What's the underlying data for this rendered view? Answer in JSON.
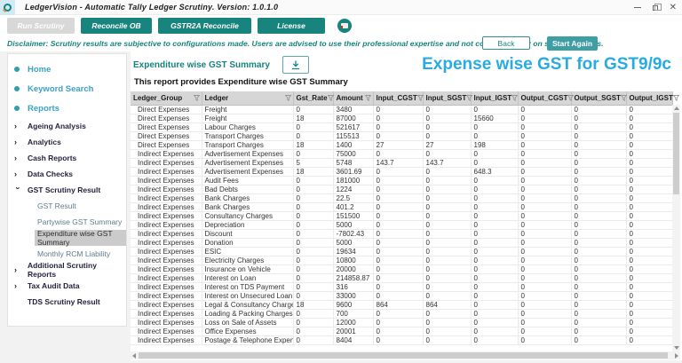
{
  "window": {
    "title": "LedgerVision - Automatic Tally Ledger Scrutiny. Version: 1.0.1.0"
  },
  "toolbar": {
    "run_scrutiny": "Run Scrutiny",
    "reconcile_ob": "Reconcile OB",
    "gstr2a_reconcile": "GSTR2A Reconcile",
    "license": "License"
  },
  "disclaimer": {
    "text": "Disclaimer: Scrutiny results are subjective to configurations made. Users are advised to use their professional expertise and not completely rely on scrutiny results.",
    "back": "Back",
    "start_again": "Start Again"
  },
  "sidebar": {
    "items": [
      {
        "label": "Home",
        "type": "root"
      },
      {
        "label": "Keyword Search",
        "type": "root"
      },
      {
        "label": "Reports",
        "type": "root"
      },
      {
        "label": "Ageing Analysis",
        "type": "group"
      },
      {
        "label": "Analytics",
        "type": "group"
      },
      {
        "label": "Cash Reports",
        "type": "group"
      },
      {
        "label": "Data Checks",
        "type": "group"
      },
      {
        "label": "GST Scrutiny Result",
        "type": "group",
        "expanded": true
      },
      {
        "label": "GST Result",
        "type": "sub"
      },
      {
        "label": "Partywise GST Summary",
        "type": "sub"
      },
      {
        "label": "Expenditure wise GST Summary",
        "type": "sub",
        "selected": true
      },
      {
        "label": "Monthly RCM Liability",
        "type": "sub"
      },
      {
        "label": "Additional Scrutiny Reports",
        "type": "group"
      },
      {
        "label": "Tax Audit Data",
        "type": "group"
      },
      {
        "label": "TDS Scrutiny Result",
        "type": "group",
        "no_chevron": true
      }
    ]
  },
  "main": {
    "title": "Expenditure wise GST Summary",
    "subtitle": "This report provides Expenditure wise GST Summary",
    "right_title": "Expense wise GST for GST9/9c"
  },
  "table": {
    "columns": [
      "Ledger_Group",
      "Ledger",
      "Gst_Rate",
      "Amount",
      "Input_CGST",
      "Input_SGST",
      "Input_IGST",
      "Output_CGST",
      "Output_SGST",
      "Output_IGST"
    ],
    "rows": [
      [
        "Direct Expenses",
        "Freight",
        "0",
        "3480",
        "0",
        "0",
        "0",
        "0",
        "0",
        "0"
      ],
      [
        "Direct Expenses",
        "Freight",
        "18",
        "87000",
        "0",
        "0",
        "15660",
        "0",
        "0",
        "0"
      ],
      [
        "Direct Expenses",
        "Labour Charges",
        "0",
        "521617",
        "0",
        "0",
        "0",
        "0",
        "0",
        "0"
      ],
      [
        "Direct Expenses",
        "Transport Charges",
        "0",
        "115513",
        "0",
        "0",
        "0",
        "0",
        "0",
        "0"
      ],
      [
        "Direct Expenses",
        "Transport Charges",
        "18",
        "1400",
        "27",
        "27",
        "198",
        "0",
        "0",
        "0"
      ],
      [
        "Indirect Expenses",
        "Advertisement Expenses",
        "0",
        "75000",
        "0",
        "0",
        "0",
        "0",
        "0",
        "0"
      ],
      [
        "Indirect Expenses",
        "Advertisement Expenses",
        "5",
        "5748",
        "143.7",
        "143.7",
        "0",
        "0",
        "0",
        "0"
      ],
      [
        "Indirect Expenses",
        "Advertisement Expenses",
        "18",
        "3601.69",
        "0",
        "0",
        "648.3",
        "0",
        "0",
        "0"
      ],
      [
        "Indirect Expenses",
        "Audit Fees",
        "0",
        "181000",
        "0",
        "0",
        "0",
        "0",
        "0",
        "0"
      ],
      [
        "Indirect Expenses",
        "Bad Debts",
        "0",
        "1224",
        "0",
        "0",
        "0",
        "0",
        "0",
        "0"
      ],
      [
        "Indirect Expenses",
        "Bank Charges",
        "0",
        "22.5",
        "0",
        "0",
        "0",
        "0",
        "0",
        "0"
      ],
      [
        "Indirect Expenses",
        "Bank Charges",
        "0",
        "401.2",
        "0",
        "0",
        "0",
        "0",
        "0",
        "0"
      ],
      [
        "Indirect Expenses",
        "Consultancy Charges",
        "0",
        "151500",
        "0",
        "0",
        "0",
        "0",
        "0",
        "0"
      ],
      [
        "Indirect Expenses",
        "Depreciation",
        "0",
        "5000",
        "0",
        "0",
        "0",
        "0",
        "0",
        "0"
      ],
      [
        "Indirect Expenses",
        "Discount",
        "0",
        "-7802.43",
        "0",
        "0",
        "0",
        "0",
        "0",
        "0"
      ],
      [
        "Indirect Expenses",
        "Donation",
        "0",
        "5000",
        "0",
        "0",
        "0",
        "0",
        "0",
        "0"
      ],
      [
        "Indirect Expenses",
        "ESIC",
        "0",
        "19634",
        "0",
        "0",
        "0",
        "0",
        "0",
        "0"
      ],
      [
        "Indirect Expenses",
        "Electricity Charges",
        "0",
        "10800",
        "0",
        "0",
        "0",
        "0",
        "0",
        "0"
      ],
      [
        "Indirect Expenses",
        "Insurance on Vehicle",
        "0",
        "20000",
        "0",
        "0",
        "0",
        "0",
        "0",
        "0"
      ],
      [
        "Indirect Expenses",
        "Interest on Loan",
        "0",
        "214858.87",
        "0",
        "0",
        "0",
        "0",
        "0",
        "0"
      ],
      [
        "Indirect Expenses",
        "Interest on TDS Payment",
        "0",
        "316",
        "0",
        "0",
        "0",
        "0",
        "0",
        "0"
      ],
      [
        "Indirect Expenses",
        "Interest on Unsecured Loan",
        "0",
        "33000",
        "0",
        "0",
        "0",
        "0",
        "0",
        "0"
      ],
      [
        "Indirect Expenses",
        "Legal & Consultancy Charges",
        "18",
        "9600",
        "864",
        "864",
        "0",
        "0",
        "0",
        "0"
      ],
      [
        "Indirect Expenses",
        "Loading & Packing Charges",
        "0",
        "700",
        "0",
        "0",
        "0",
        "0",
        "0",
        "0"
      ],
      [
        "Indirect Expenses",
        "Loss on Sale of Assets",
        "0",
        "12000",
        "0",
        "0",
        "0",
        "0",
        "0",
        "0"
      ],
      [
        "Indirect Expenses",
        "Office Expenses",
        "0",
        "20001",
        "0",
        "0",
        "0",
        "0",
        "0",
        "0"
      ],
      [
        "Indirect Expenses",
        "Postage & Telephone Expenses",
        "0",
        "8404",
        "0",
        "0",
        "0",
        "0",
        "0",
        "0"
      ]
    ]
  },
  "icons": {
    "logo": "magnifier-logo",
    "video_help": "video-circle",
    "download": "download-arrow",
    "filter": "funnel",
    "sidebar_bullet": "dot",
    "chevron_glyph": "›",
    "window_controls": [
      "minimize",
      "restore",
      "close"
    ]
  },
  "colors": {
    "teal": "#17847D",
    "teal_light": "#3f9ea4",
    "blue_heading": "#29ABE2",
    "sidebar_link": "#3aa3c6",
    "disabled_gray": "#d8d8d8",
    "grid_header_bg": "#d6d6d6"
  }
}
